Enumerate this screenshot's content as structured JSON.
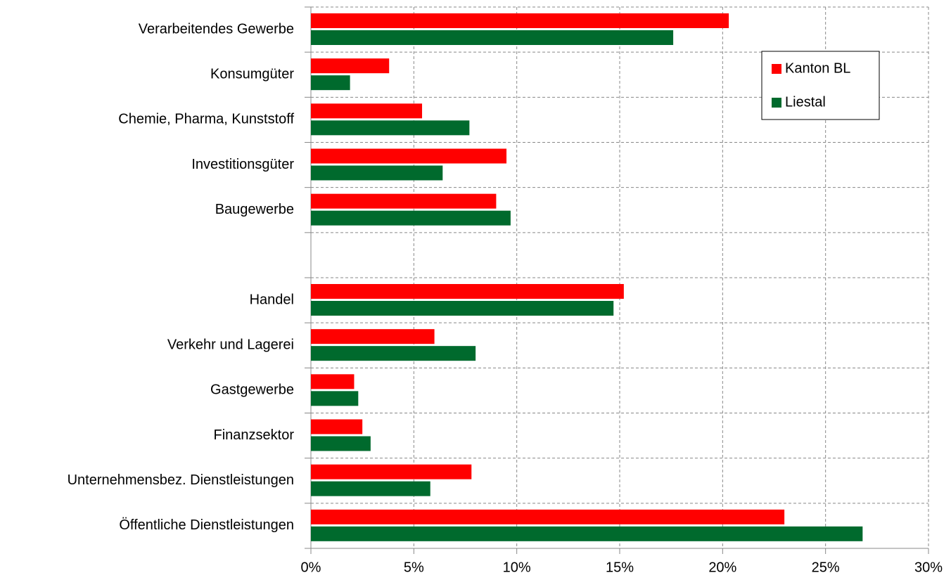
{
  "chart_data": {
    "type": "hbar",
    "categories": [
      "Verarbeitendes Gewerbe",
      "Konsumgüter",
      "Chemie, Pharma, Kunststoff",
      "Investitionsgüter",
      "Baugewerbe",
      null,
      "Handel",
      "Verkehr und Lagerei",
      "Gastgewerbe",
      "Finanzsektor",
      "Unternehmensbez. Dienstleistungen",
      "Öffentliche Dienstleistungen"
    ],
    "series": [
      {
        "name": "Kanton BL",
        "color": "#ff0000",
        "values": [
          20.3,
          3.8,
          5.4,
          9.5,
          9.0,
          null,
          15.2,
          6.0,
          2.1,
          2.5,
          7.8,
          23.0
        ]
      },
      {
        "name": "Liestal",
        "color": "#006a2d",
        "values": [
          17.6,
          1.9,
          7.7,
          6.4,
          9.7,
          null,
          14.7,
          8.0,
          2.3,
          2.9,
          5.8,
          26.8
        ]
      }
    ],
    "xlim": [
      0,
      30
    ],
    "xticks": [
      {
        "value": 0,
        "label": "0%"
      },
      {
        "value": 5,
        "label": "5%"
      },
      {
        "value": 10,
        "label": "10%"
      },
      {
        "value": 15,
        "label": "15%"
      },
      {
        "value": 20,
        "label": "20%"
      },
      {
        "value": 25,
        "label": "25%"
      },
      {
        "value": 30,
        "label": "30%"
      }
    ],
    "grid": true,
    "legend": "top-right"
  }
}
